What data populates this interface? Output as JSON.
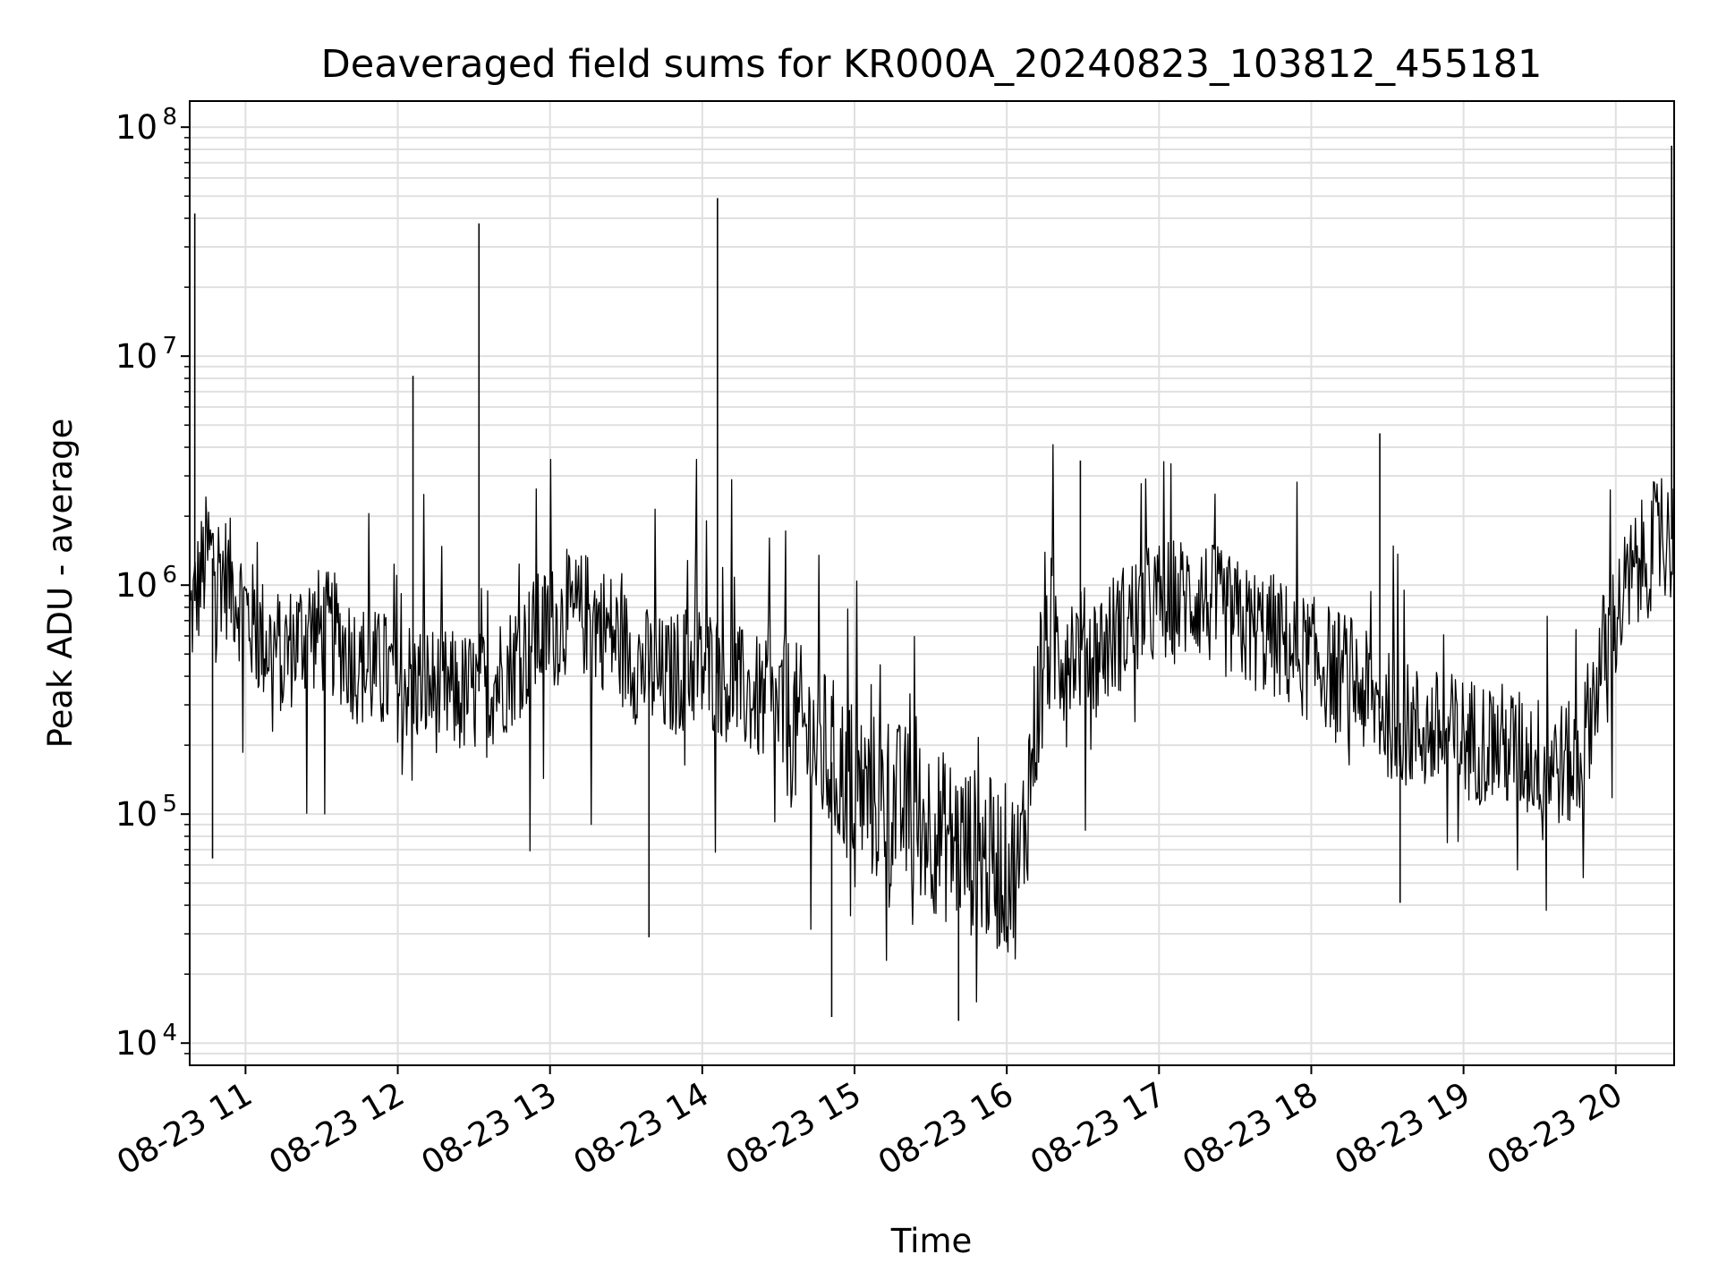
{
  "chart_data": {
    "type": "line",
    "title": "Deaveraged field sums for KR000A_20240823_103812_455181",
    "xlabel": "Time",
    "ylabel": "Peak ADU - average",
    "yscale": "log",
    "ylim": [
      8000,
      130000000
    ],
    "xlim": [
      "08-23 10:38",
      "08-23 20:23"
    ],
    "x_tick_labels": [
      "08-23 11",
      "08-23 12",
      "08-23 13",
      "08-23 14",
      "08-23 15",
      "08-23 16",
      "08-23 17",
      "08-23 18",
      "08-23 19",
      "08-23 20"
    ],
    "y_tick_labels": [
      {
        "base": "10",
        "exp": "4"
      },
      {
        "base": "10",
        "exp": "5"
      },
      {
        "base": "10",
        "exp": "6"
      },
      {
        "base": "10",
        "exp": "7"
      },
      {
        "base": "10",
        "exp": "8"
      }
    ],
    "grid": true,
    "line_color": "#000000",
    "grid_color": "#e0e0e0",
    "series": [
      {
        "x": [
          "08-23 10:38",
          "08-23 10:45",
          "08-23 10:55",
          "08-23 11:05",
          "08-23 11:15",
          "08-23 11:25",
          "08-23 11:35",
          "08-23 11:45",
          "08-23 11:55",
          "08-23 12:05",
          "08-23 12:15",
          "08-23 12:25",
          "08-23 12:35",
          "08-23 12:45",
          "08-23 12:55",
          "08-23 13:05",
          "08-23 13:15",
          "08-23 13:25",
          "08-23 13:35",
          "08-23 13:45",
          "08-23 13:55",
          "08-23 14:05",
          "08-23 14:15",
          "08-23 14:25",
          "08-23 14:35",
          "08-23 14:45",
          "08-23 14:55",
          "08-23 15:05",
          "08-23 15:15",
          "08-23 15:25",
          "08-23 15:35",
          "08-23 15:45",
          "08-23 15:55",
          "08-23 16:05",
          "08-23 16:15",
          "08-23 16:25",
          "08-23 16:35",
          "08-23 16:45",
          "08-23 16:55",
          "08-23 17:05",
          "08-23 17:15",
          "08-23 17:25",
          "08-23 17:35",
          "08-23 17:45",
          "08-23 17:55",
          "08-23 18:05",
          "08-23 18:15",
          "08-23 18:25",
          "08-23 18:35",
          "08-23 18:45",
          "08-23 18:55",
          "08-23 19:05",
          "08-23 19:15",
          "08-23 19:25",
          "08-23 19:35",
          "08-23 19:45",
          "08-23 19:55",
          "08-23 20:05",
          "08-23 20:15",
          "08-23 20:23"
        ],
        "y": [
          700000,
          1400000,
          1000000,
          600000,
          500000,
          650000,
          600000,
          450000,
          400000,
          380000,
          350000,
          330000,
          350000,
          450000,
          600000,
          700000,
          750000,
          600000,
          450000,
          380000,
          450000,
          420000,
          350000,
          300000,
          250000,
          200000,
          150000,
          120000,
          110000,
          100000,
          80000,
          70000,
          60000,
          55000,
          600000,
          550000,
          500000,
          650000,
          800000,
          850000,
          900000,
          750000,
          650000,
          600000,
          500000,
          450000,
          400000,
          300000,
          250000,
          230000,
          220000,
          210000,
          200000,
          180000,
          170000,
          160000,
          500000,
          1000000,
          1500000,
          1600000
        ]
      }
    ],
    "spikes": [
      {
        "x": "08-23 10:40",
        "y": 42000000
      },
      {
        "x": "08-23 10:47",
        "y": 64000
      },
      {
        "x": "08-23 12:06",
        "y": 8200000
      },
      {
        "x": "08-23 12:32",
        "y": 38000000
      },
      {
        "x": "08-23 14:06",
        "y": 49000000
      },
      {
        "x": "08-23 14:51",
        "y": 13000
      },
      {
        "x": "08-23 15:41",
        "y": 12500
      },
      {
        "x": "08-23 13:39",
        "y": 29000
      },
      {
        "x": "08-23 16:29",
        "y": 3500000
      },
      {
        "x": "08-23 18:27",
        "y": 4600000
      },
      {
        "x": "08-23 18:35",
        "y": 41000
      },
      {
        "x": "08-23 20:22",
        "y": 83000000
      },
      {
        "x": "08-23 20:23",
        "y": 500000
      }
    ]
  }
}
